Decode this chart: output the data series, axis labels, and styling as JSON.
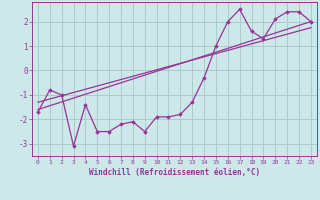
{
  "xlabel": "Windchill (Refroidissement éolien,°C)",
  "background_color": "#cce8e8",
  "grid_color": "#aacccc",
  "line_color": "#993399",
  "marker_color": "#993399",
  "xlim": [
    -0.5,
    23.5
  ],
  "ylim": [
    -3.5,
    2.8
  ],
  "yticks": [
    -3,
    -2,
    -1,
    0,
    1,
    2
  ],
  "xticks": [
    0,
    1,
    2,
    3,
    4,
    5,
    6,
    7,
    8,
    9,
    10,
    11,
    12,
    13,
    14,
    15,
    16,
    17,
    18,
    19,
    20,
    21,
    22,
    23
  ],
  "line1_x": [
    0,
    1,
    2,
    3,
    4,
    5,
    6,
    7,
    8,
    9,
    10,
    11,
    12,
    13,
    14,
    15,
    16,
    17,
    18,
    19,
    20,
    21,
    22,
    23
  ],
  "line1_y": [
    -1.7,
    -0.8,
    -1.0,
    -3.1,
    -1.4,
    -2.5,
    -2.5,
    -2.2,
    -2.1,
    -2.5,
    -1.9,
    -1.9,
    -1.8,
    -1.3,
    -0.3,
    1.0,
    2.0,
    2.5,
    1.6,
    1.3,
    2.1,
    2.4,
    2.4,
    2.0
  ],
  "line2_x": [
    0,
    23
  ],
  "line2_y": [
    -1.6,
    2.0
  ],
  "line3_x": [
    0,
    23
  ],
  "line3_y": [
    -1.3,
    1.75
  ]
}
